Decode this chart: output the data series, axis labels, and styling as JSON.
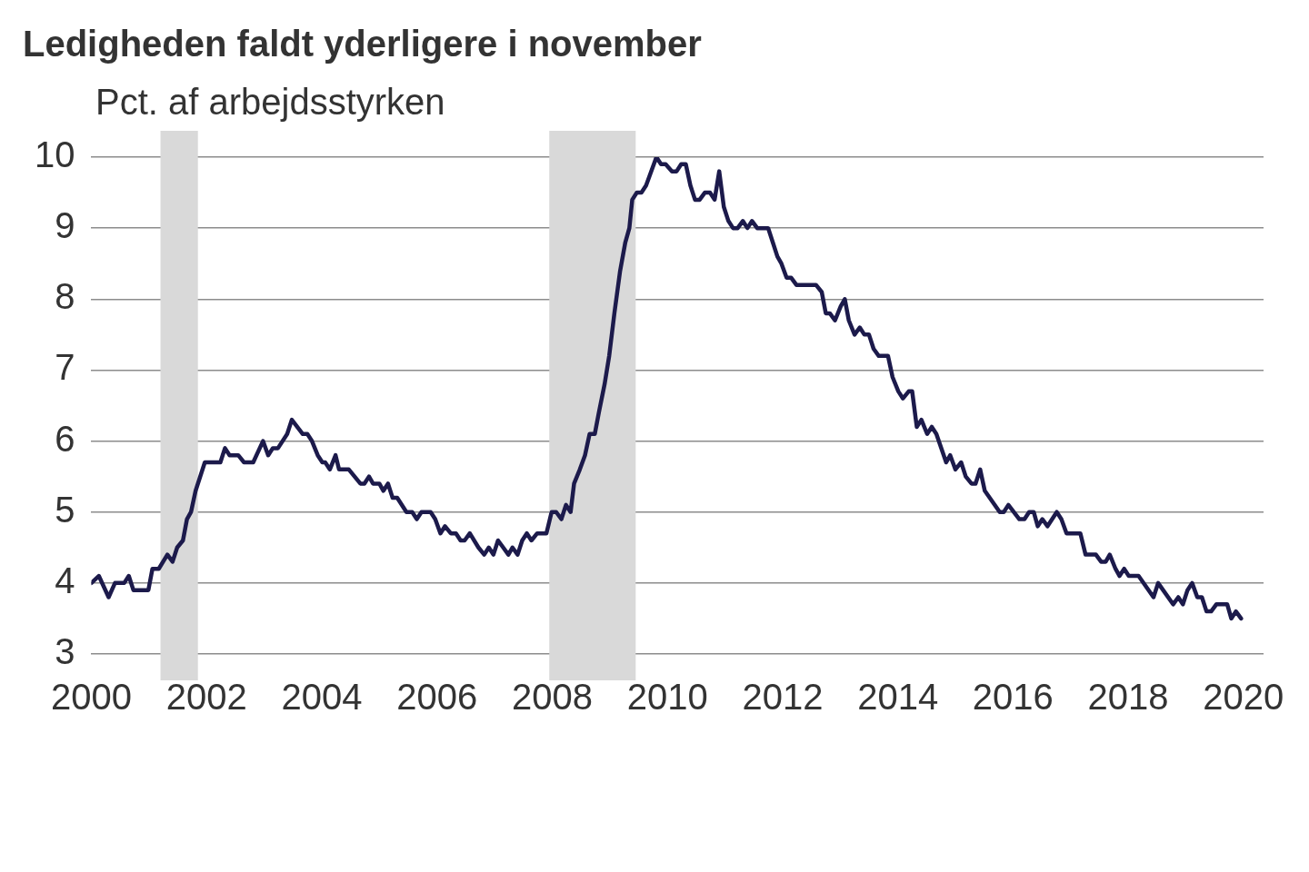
{
  "chart_data": {
    "type": "line",
    "title": "Ledigheden faldt yderligere i november",
    "ylabel": "Pct. af arbejdsstyrken",
    "xlim": [
      2000,
      2020.35
    ],
    "xticks": [
      2000,
      2002,
      2004,
      2006,
      2008,
      2010,
      2012,
      2014,
      2016,
      2018,
      2020
    ],
    "ylim": [
      3,
      10
    ],
    "yticks": [
      3,
      4,
      5,
      6,
      7,
      8,
      9,
      10
    ],
    "grid": "y",
    "bands": [
      {
        "axis": "x",
        "from": 2001.2,
        "to": 2001.85,
        "color": "#d9d9d9"
      },
      {
        "axis": "x",
        "from": 2007.95,
        "to": 2009.45,
        "color": "#d9d9d9"
      }
    ],
    "x": [
      2000.0,
      2000.13,
      2000.3,
      2000.41,
      2000.57,
      2000.65,
      2000.73,
      2000.99,
      2001.06,
      2001.17,
      2001.32,
      2001.41,
      2001.49,
      2001.59,
      2001.66,
      2001.73,
      2001.81,
      2001.97,
      2002.24,
      2002.32,
      2002.4,
      2002.55,
      2002.65,
      2002.81,
      2002.98,
      2003.07,
      2003.15,
      2003.24,
      2003.4,
      2003.48,
      2003.67,
      2003.75,
      2003.83,
      2003.93,
      2004.01,
      2004.06,
      2004.14,
      2004.24,
      2004.3,
      2004.47,
      2004.67,
      2004.74,
      2004.82,
      2004.89,
      2005.0,
      2005.07,
      2005.15,
      2005.23,
      2005.31,
      2005.47,
      2005.57,
      2005.65,
      2005.73,
      2005.89,
      2005.97,
      2006.06,
      2006.14,
      2006.24,
      2006.33,
      2006.41,
      2006.48,
      2006.57,
      2006.72,
      2006.82,
      2006.9,
      2006.98,
      2007.06,
      2007.15,
      2007.24,
      2007.31,
      2007.4,
      2007.48,
      2007.56,
      2007.64,
      2007.74,
      2007.9,
      2007.99,
      2008.07,
      2008.16,
      2008.24,
      2008.32,
      2008.38,
      2008.48,
      2008.57,
      2008.65,
      2008.74,
      2008.81,
      2008.91,
      2008.99,
      2009.08,
      2009.18,
      2009.27,
      2009.34,
      2009.39,
      2009.47,
      2009.55,
      2009.63,
      2009.81,
      2009.89,
      2009.97,
      2010.08,
      2010.16,
      2010.24,
      2010.32,
      2010.4,
      2010.48,
      2010.56,
      2010.65,
      2010.74,
      2010.82,
      2010.9,
      2010.98,
      2011.06,
      2011.14,
      2011.22,
      2011.31,
      2011.39,
      2011.47,
      2011.56,
      2011.75,
      2011.83,
      2011.91,
      2011.98,
      2012.07,
      2012.15,
      2012.24,
      2012.58,
      2012.68,
      2012.75,
      2012.82,
      2012.91,
      2013.01,
      2013.08,
      2013.15,
      2013.25,
      2013.34,
      2013.42,
      2013.5,
      2013.58,
      2013.67,
      2013.83,
      2013.91,
      2014.01,
      2014.09,
      2014.19,
      2014.25,
      2014.33,
      2014.41,
      2014.51,
      2014.59,
      2014.67,
      2014.84,
      2014.91,
      2015.0,
      2015.1,
      2015.18,
      2015.28,
      2015.35,
      2015.43,
      2015.51,
      2015.77,
      2015.84,
      2015.92,
      2016.11,
      2016.2,
      2016.28,
      2016.36,
      2016.43,
      2016.51,
      2016.6,
      2016.76,
      2016.84,
      2016.93,
      2017.17,
      2017.26,
      2017.44,
      2017.53,
      2017.61,
      2017.68,
      2017.78,
      2017.85,
      2017.93,
      2018.01,
      2018.18,
      2018.44,
      2018.52,
      2018.78,
      2018.87,
      2018.95,
      2019.03,
      2019.11,
      2019.2,
      2019.28,
      2019.36,
      2019.44,
      2019.53,
      2019.72,
      2019.79,
      2019.87,
      2019.96
    ],
    "series": [
      {
        "color": "#1c1a4b",
        "values": [
          4.0,
          4.1,
          3.8,
          4.0,
          4.0,
          4.1,
          3.9,
          3.9,
          4.2,
          4.2,
          4.4,
          4.3,
          4.5,
          4.6,
          4.9,
          5.0,
          5.3,
          5.7,
          5.7,
          5.9,
          5.8,
          5.8,
          5.7,
          5.7,
          6.0,
          5.8,
          5.9,
          5.9,
          6.1,
          6.3,
          6.1,
          6.1,
          6.0,
          5.8,
          5.7,
          5.7,
          5.6,
          5.8,
          5.6,
          5.6,
          5.4,
          5.4,
          5.5,
          5.4,
          5.4,
          5.3,
          5.4,
          5.2,
          5.2,
          5.0,
          5.0,
          4.9,
          5.0,
          5.0,
          4.9,
          4.7,
          4.8,
          4.7,
          4.7,
          4.6,
          4.6,
          4.7,
          4.5,
          4.4,
          4.5,
          4.4,
          4.6,
          4.5,
          4.4,
          4.5,
          4.4,
          4.6,
          4.7,
          4.6,
          4.7,
          4.7,
          5.0,
          5.0,
          4.9,
          5.1,
          5.0,
          5.4,
          5.6,
          5.8,
          6.1,
          6.1,
          6.4,
          6.8,
          7.2,
          7.8,
          8.4,
          8.8,
          9.0,
          9.4,
          9.5,
          9.5,
          9.6,
          10.0,
          9.9,
          9.9,
          9.8,
          9.8,
          9.9,
          9.9,
          9.6,
          9.4,
          9.4,
          9.5,
          9.5,
          9.4,
          9.8,
          9.3,
          9.1,
          9.0,
          9.0,
          9.1,
          9.0,
          9.1,
          9.0,
          9.0,
          8.8,
          8.6,
          8.5,
          8.3,
          8.3,
          8.2,
          8.2,
          8.1,
          7.8,
          7.8,
          7.7,
          7.9,
          8.0,
          7.7,
          7.5,
          7.6,
          7.5,
          7.5,
          7.3,
          7.2,
          7.2,
          6.9,
          6.7,
          6.6,
          6.7,
          6.7,
          6.2,
          6.3,
          6.1,
          6.2,
          6.1,
          5.7,
          5.8,
          5.6,
          5.7,
          5.5,
          5.4,
          5.4,
          5.6,
          5.3,
          5.0,
          5.0,
          5.1,
          4.9,
          4.9,
          5.0,
          5.0,
          4.8,
          4.9,
          4.8,
          5.0,
          4.9,
          4.7,
          4.7,
          4.4,
          4.4,
          4.3,
          4.3,
          4.4,
          4.2,
          4.1,
          4.2,
          4.1,
          4.1,
          3.8,
          4.0,
          3.7,
          3.8,
          3.7,
          3.9,
          4.0,
          3.8,
          3.8,
          3.6,
          3.6,
          3.7,
          3.7,
          3.5,
          3.6,
          3.5
        ]
      }
    ]
  }
}
